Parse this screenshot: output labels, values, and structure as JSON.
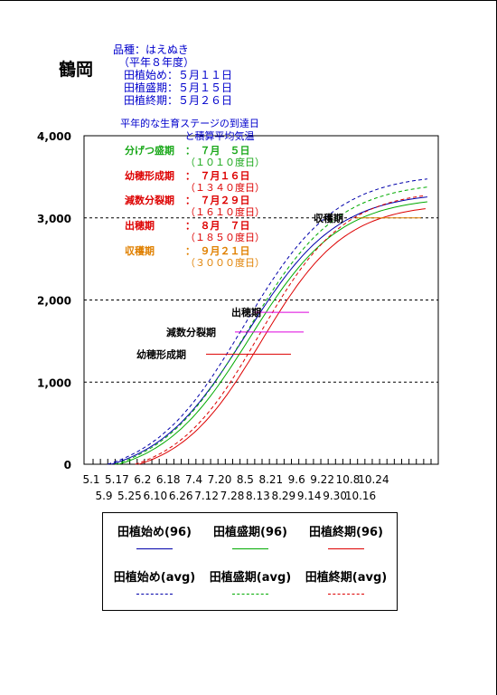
{
  "page_title": "鶴岡",
  "info": {
    "variety": "品種：はえぬき",
    "year": "（平年８年度）",
    "plant_start": "田植始め：５月１１日",
    "plant_peak": "田植盛期：５月１５日",
    "plant_end": "田植終期：５月２６日"
  },
  "chart_data": {
    "type": "line",
    "title": "",
    "note_line1": "平年的な生育ステージの到達日",
    "note_line2": "と積算平均気温",
    "ylim": [
      0,
      4000
    ],
    "y_ticks": [
      0,
      1000,
      2000,
      3000,
      4000
    ],
    "y_tick_labels": [
      "0",
      "1,000",
      "2,000",
      "3,000",
      "4,000"
    ],
    "x_labels_top": [
      "5.1",
      "5.17",
      "6.2",
      "6.18",
      "7.4",
      "7.20",
      "8.5",
      "8.21",
      "9.6",
      "9.22",
      "10.8",
      "10.24"
    ],
    "x_labels_bottom": [
      "5.9",
      "5.25",
      "6.10",
      "6.26",
      "7.12",
      "7.28",
      "8.13",
      "8.29",
      "9.14",
      "9.30",
      "10.16"
    ],
    "grid": "dashed at 1,000 2,000 3,000",
    "stages": [
      {
        "name": "分げつ盛期",
        "date": "：　７月　５日",
        "sum": "（１０１０度日）",
        "color": "#1aa81a"
      },
      {
        "name": "幼穂形成期",
        "date": "：　７月１６日",
        "sum": "（１３４０度日）",
        "color": "#dd0000"
      },
      {
        "name": "減数分裂期",
        "date": "：　７月２９日",
        "sum": "（１６１０度日）",
        "color": "#dd0000"
      },
      {
        "name": "出穂期",
        "date": "：　８月　７日",
        "sum": "（１８５０度日）",
        "color": "#dd0000"
      },
      {
        "name": "収穫期",
        "date": "：　９月２１日",
        "sum": "（３０００度日）",
        "color": "#e08000"
      }
    ],
    "annotations": [
      {
        "label": "収穫期",
        "y": 3000,
        "color": "#e08000"
      },
      {
        "label": "出穂期",
        "y": 1850,
        "color": "#dd00dd"
      },
      {
        "label": "減数分裂期",
        "y": 1610,
        "color": "#dd00dd"
      },
      {
        "label": "幼穂形成期",
        "y": 1340,
        "color": "#dd0000"
      }
    ],
    "series": [
      {
        "name": "田植始め(96)",
        "color": "#0000aa",
        "style": "solid",
        "start_day": 10,
        "end_value": 3260
      },
      {
        "name": "田植盛期(96)",
        "color": "#00aa00",
        "style": "solid",
        "start_day": 14,
        "end_value": 3200
      },
      {
        "name": "田植終期(96)",
        "color": "#dd0000",
        "style": "solid",
        "start_day": 25,
        "end_value": 3120
      },
      {
        "name": "田植始め(avg)",
        "color": "#0000aa",
        "style": "dashed",
        "start_day": 8,
        "end_value": 3480
      },
      {
        "name": "田植盛期(avg)",
        "color": "#00aa00",
        "style": "dashed",
        "start_day": 12,
        "end_value": 3380
      },
      {
        "name": "田植終期(avg)",
        "color": "#dd0000",
        "style": "dashed",
        "start_day": 23,
        "end_value": 3280
      }
    ]
  }
}
